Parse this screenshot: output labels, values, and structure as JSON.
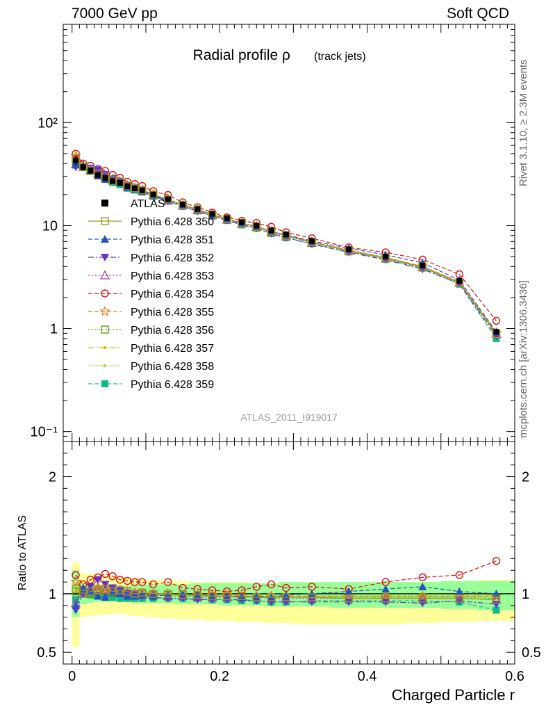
{
  "header": {
    "left": "7000 GeV pp",
    "right": "Soft QCD"
  },
  "side_labels": {
    "rivet": "Rivet 3.1.10, ≥ 2.3M events",
    "mcplots": "mcplots.cern.ch [arXiv:1306.3436]"
  },
  "colors": {
    "ratio_band_outer": "#ffff99",
    "ratio_band_inner": "#99ff99"
  },
  "chart_data": [
    {
      "type": "line",
      "title": "Radial profile ρ",
      "title_note": "(track jets)",
      "watermark": "ATLAS_2011_I919017",
      "yscale": "log",
      "ylim": [
        0.08,
        900
      ],
      "xlim": [
        -0.012,
        0.6
      ],
      "yticklabels": [
        "10⁻¹",
        "1",
        "10",
        "10²"
      ],
      "legend_position": "center-left",
      "x": [
        0.005,
        0.015,
        0.025,
        0.035,
        0.045,
        0.055,
        0.065,
        0.075,
        0.085,
        0.095,
        0.11,
        0.13,
        0.15,
        0.17,
        0.19,
        0.21,
        0.23,
        0.25,
        0.27,
        0.29,
        0.325,
        0.375,
        0.425,
        0.475,
        0.525,
        0.575
      ],
      "series": [
        {
          "name": "ATLAS",
          "color": "#000000",
          "dash": "",
          "marker": "filled-square",
          "values": [
            43,
            37,
            34,
            31,
            29,
            27,
            26,
            24,
            23,
            22,
            20,
            18,
            16,
            14.5,
            13,
            11.8,
            10.8,
            10,
            9,
            8.2,
            7.1,
            5.9,
            5,
            4.1,
            2.9,
            0.93
          ],
          "errors": [
            5,
            3,
            2,
            1.5,
            1.2,
            1,
            1,
            0.8,
            0.8,
            0.7,
            0.6,
            0.5,
            0.5,
            0.4,
            0.4,
            0.4,
            0.3,
            0.3,
            0.3,
            0.3,
            0.2,
            0.2,
            0.2,
            0.2,
            0.15,
            0.06
          ]
        },
        {
          "name": "Pythia 6.428 350",
          "color": "#999922",
          "dash": "",
          "marker": "open-square",
          "ratio": [
            1.04,
            1.0,
            1.02,
            1.03,
            1.04,
            1.02,
            1.03,
            1.02,
            1.0,
            1.01,
            1.0,
            1.0,
            0.99,
            0.99,
            0.98,
            0.98,
            0.98,
            0.97,
            0.97,
            0.97,
            0.97,
            0.96,
            0.96,
            0.96,
            0.96,
            0.95
          ]
        },
        {
          "name": "Pythia 6.428 351",
          "color": "#2255bb",
          "dash": "6,3",
          "marker": "triangle-up",
          "ratio": [
            0.9,
            1.05,
            1.02,
            0.98,
            0.97,
            1.01,
            1.0,
            0.98,
            0.98,
            0.99,
            0.98,
            0.99,
            1.0,
            0.99,
            0.98,
            0.98,
            0.97,
            0.98,
            0.97,
            0.99,
            1.0,
            1.02,
            1.04,
            1.06,
            1.02,
            1.0
          ]
        },
        {
          "name": "Pythia 6.428 352",
          "color": "#6633cc",
          "dash": "8,3,2,3",
          "marker": "triangle-down",
          "ratio": [
            0.86,
            1.0,
            1.06,
            1.12,
            1.08,
            1.05,
            1.03,
            1.0,
            0.99,
            0.98,
            0.97,
            0.96,
            0.96,
            0.95,
            0.95,
            0.95,
            0.95,
            0.94,
            0.93,
            0.93,
            0.93,
            0.93,
            0.93,
            0.92,
            0.94,
            0.91
          ]
        },
        {
          "name": "Pythia 6.428 353",
          "color": "#bb33aa",
          "dash": "2,3",
          "marker": "open-triangle-up",
          "ratio": [
            0.92,
            1.0,
            1.02,
            1.04,
            1.03,
            1.02,
            1.01,
            1.0,
            0.99,
            0.99,
            0.99,
            0.98,
            0.98,
            0.97,
            0.97,
            0.97,
            0.97,
            0.97,
            0.96,
            0.96,
            0.96,
            0.96,
            0.96,
            0.96,
            0.96,
            0.95
          ]
        },
        {
          "name": "Pythia 6.428 354",
          "color": "#dd1111",
          "dash": "6,3",
          "marker": "open-circle",
          "ratio": [
            1.16,
            1.08,
            1.12,
            1.14,
            1.17,
            1.15,
            1.12,
            1.11,
            1.1,
            1.1,
            1.08,
            1.1,
            1.05,
            1.04,
            1.03,
            1.02,
            1.03,
            1.06,
            1.08,
            1.05,
            1.06,
            1.04,
            1.1,
            1.14,
            1.16,
            1.28
          ]
        },
        {
          "name": "Pythia 6.428 355",
          "color": "#ee7711",
          "dash": "6,3",
          "marker": "open-star",
          "ratio": [
            1.1,
            1.04,
            1.03,
            1.06,
            1.05,
            1.04,
            1.03,
            1.02,
            1.01,
            1.01,
            1.0,
            1.0,
            0.99,
            0.99,
            0.99,
            0.99,
            0.98,
            0.98,
            0.98,
            0.98,
            0.98,
            0.98,
            0.98,
            0.98,
            0.98,
            0.98
          ]
        },
        {
          "name": "Pythia 6.428 356",
          "color": "#669911",
          "dash": "2,3",
          "marker": "open-square",
          "ratio": [
            1.02,
            1.0,
            1.0,
            1.02,
            1.02,
            1.01,
            1.01,
            1.0,
            1.0,
            1.0,
            0.99,
            0.99,
            0.99,
            0.98,
            0.98,
            0.98,
            0.98,
            0.97,
            0.97,
            0.97,
            0.97,
            0.97,
            0.97,
            0.97,
            0.97,
            0.96
          ]
        },
        {
          "name": "Pythia 6.428 357",
          "color": "#ddbb00",
          "dash": "8,3,2,3",
          "marker": "dot",
          "ratio": [
            1.05,
            1.02,
            1.01,
            1.03,
            1.03,
            1.02,
            1.01,
            1.0,
            1.0,
            1.0,
            1.0,
            0.99,
            0.99,
            0.99,
            0.98,
            0.98,
            0.98,
            0.98,
            0.98,
            0.98,
            0.98,
            0.98,
            0.98,
            0.98,
            0.98,
            0.99
          ]
        },
        {
          "name": "Pythia 6.428 358",
          "color": "#bbcc22",
          "dash": "2,2",
          "marker": "dot",
          "ratio": [
            1.03,
            1.01,
            1.0,
            1.02,
            1.02,
            1.01,
            1.0,
            1.0,
            0.99,
            0.99,
            0.99,
            0.99,
            0.98,
            0.98,
            0.98,
            0.98,
            0.98,
            0.97,
            0.97,
            0.97,
            0.97,
            0.97,
            0.97,
            0.97,
            0.97,
            0.97
          ]
        },
        {
          "name": "Pythia 6.428 359",
          "color": "#11bb88",
          "dash": "6,3",
          "marker": "filled-square",
          "ratio": [
            0.95,
            1.0,
            0.99,
            0.98,
            0.97,
            0.97,
            0.96,
            0.96,
            0.96,
            0.96,
            0.96,
            0.96,
            0.96,
            0.96,
            0.95,
            0.95,
            0.94,
            0.94,
            0.93,
            0.93,
            0.94,
            0.94,
            0.94,
            0.94,
            0.93,
            0.86
          ]
        }
      ]
    },
    {
      "type": "line",
      "ylabel": "Ratio to ATLAS",
      "xlabel": "Charged Particle r",
      "ylim": [
        0.4,
        2.3
      ],
      "xticklabels": [
        "0",
        "0.2",
        "0.4",
        "0.6"
      ],
      "yticklabels": [
        "0.5",
        "1",
        "2"
      ],
      "reference_line": 1,
      "band": {
        "x_edges": [
          0,
          0.01,
          0.02,
          0.03,
          0.04,
          0.05,
          0.06,
          0.07,
          0.08,
          0.09,
          0.1,
          0.12,
          0.14,
          0.16,
          0.18,
          0.2,
          0.22,
          0.24,
          0.26,
          0.28,
          0.3,
          0.35,
          0.4,
          0.45,
          0.5,
          0.55,
          0.6
        ],
        "outer_low": [
          0.55,
          0.8,
          0.81,
          0.82,
          0.82,
          0.83,
          0.83,
          0.82,
          0.81,
          0.81,
          0.8,
          0.79,
          0.78,
          0.78,
          0.77,
          0.77,
          0.76,
          0.76,
          0.75,
          0.75,
          0.74,
          0.74,
          0.74,
          0.75,
          0.76,
          0.77
        ],
        "outer_high": [
          1.27,
          1.18,
          1.17,
          1.16,
          1.15,
          1.15,
          1.14,
          1.14,
          1.13,
          1.12,
          1.12,
          1.11,
          1.11,
          1.1,
          1.1,
          1.1,
          1.1,
          1.09,
          1.09,
          1.09,
          1.09,
          1.09,
          1.1,
          1.1,
          1.11,
          1.12
        ],
        "inner_low": [
          0.8,
          0.91,
          0.92,
          0.93,
          0.93,
          0.93,
          0.93,
          0.93,
          0.92,
          0.92,
          0.92,
          0.92,
          0.91,
          0.91,
          0.91,
          0.9,
          0.9,
          0.9,
          0.89,
          0.89,
          0.89,
          0.88,
          0.88,
          0.88,
          0.87,
          0.86
        ],
        "inner_high": [
          1.2,
          1.09,
          1.08,
          1.07,
          1.07,
          1.07,
          1.07,
          1.07,
          1.08,
          1.08,
          1.08,
          1.08,
          1.08,
          1.09,
          1.09,
          1.09,
          1.09,
          1.09,
          1.09,
          1.1,
          1.1,
          1.1,
          1.1,
          1.1,
          1.11,
          1.11
        ]
      }
    }
  ]
}
